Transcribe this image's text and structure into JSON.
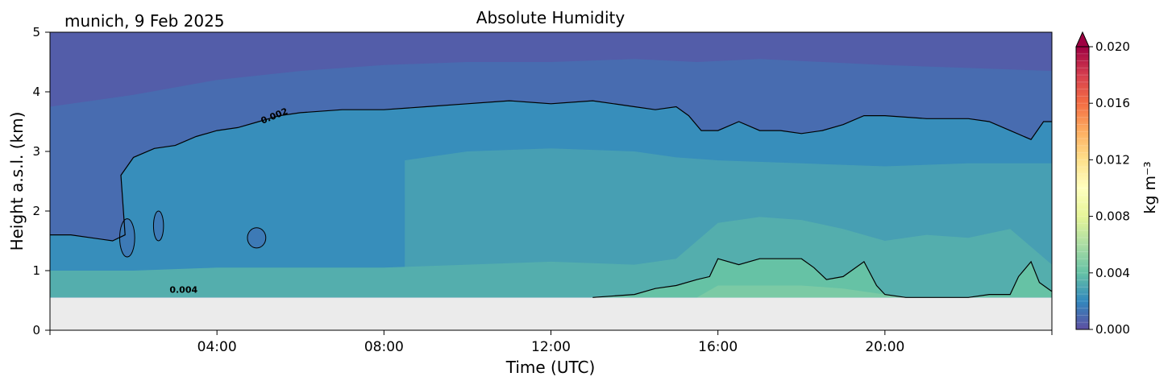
{
  "location_date": "munich, 9 Feb 2025",
  "chart_data": {
    "type": "heatmap",
    "title": "Absolute Humidity",
    "xlabel": "Time (UTC)",
    "ylabel": "Height a.s.l. (km)",
    "xlim": [
      0,
      24
    ],
    "ylim": [
      0,
      5
    ],
    "x_ticks": [
      4,
      8,
      12,
      16,
      20
    ],
    "x_tick_labels": [
      "04:00",
      "08:00",
      "12:00",
      "16:00",
      "20:00"
    ],
    "y_ticks": [
      0,
      1,
      2,
      3,
      4,
      5
    ],
    "y_tick_labels": [
      "0",
      "1",
      "2",
      "3",
      "4",
      "5"
    ],
    "data_bottom_km": 0.55,
    "grid": false,
    "colorbar": {
      "label": "kg m⁻³",
      "range": [
        0.0,
        0.02
      ],
      "extend": "max",
      "colormap": "Spectral_r",
      "ticks": [
        0.0,
        0.004,
        0.008,
        0.012,
        0.016,
        0.02
      ],
      "tick_labels": [
        "0.000",
        "0.004",
        "0.008",
        "0.012",
        "0.016",
        "0.020"
      ]
    },
    "contours": [
      {
        "level": 0.002,
        "label": "0.002",
        "times": [
          0.0,
          0.5,
          1.0,
          1.5,
          1.8,
          1.7,
          2.0,
          2.5,
          3.0,
          3.5,
          4.0,
          4.5,
          5.0,
          5.5,
          6.0,
          7.0,
          8.0,
          9.0,
          10.0,
          11.0,
          12.0,
          13.0,
          14.0,
          14.5,
          15.0,
          15.3,
          15.6,
          16.0,
          16.5,
          17.0,
          17.5,
          18.0,
          18.5,
          19.0,
          19.5,
          20.0,
          21.0,
          22.0,
          22.5,
          23.0,
          23.5,
          23.8,
          24.0
        ],
        "heights": [
          1.6,
          1.6,
          1.55,
          1.5,
          1.6,
          2.6,
          2.9,
          3.05,
          3.1,
          3.25,
          3.35,
          3.4,
          3.5,
          3.6,
          3.65,
          3.7,
          3.7,
          3.75,
          3.8,
          3.85,
          3.8,
          3.85,
          3.75,
          3.7,
          3.75,
          3.6,
          3.35,
          3.35,
          3.5,
          3.35,
          3.35,
          3.3,
          3.35,
          3.45,
          3.6,
          3.6,
          3.55,
          3.55,
          3.5,
          3.35,
          3.2,
          3.5,
          3.5
        ]
      },
      {
        "level": 0.004,
        "label": "0.004",
        "times": [
          13.0,
          14.0,
          14.5,
          15.0,
          15.5,
          15.8,
          16.0,
          16.5,
          17.0,
          17.5,
          18.0,
          18.3,
          18.6,
          19.0,
          19.5,
          19.8,
          20.0,
          20.5,
          21.0,
          21.5,
          22.0,
          22.5,
          23.0,
          23.2,
          23.5,
          23.7,
          24.0
        ],
        "heights": [
          0.55,
          0.6,
          0.7,
          0.75,
          0.85,
          0.9,
          1.2,
          1.1,
          1.2,
          1.2,
          1.2,
          1.05,
          0.85,
          0.9,
          1.15,
          0.75,
          0.6,
          0.55,
          0.55,
          0.55,
          0.55,
          0.6,
          0.6,
          0.9,
          1.15,
          0.8,
          0.65
        ]
      }
    ],
    "field_regions": [
      {
        "value": 0.0005,
        "top_times": [
          0,
          24
        ],
        "top_heights": [
          5.0,
          5.0
        ]
      },
      {
        "value": 0.001,
        "top_times": [
          0,
          2,
          4,
          6,
          8,
          10,
          12,
          14,
          15.5,
          17,
          20,
          22,
          24
        ],
        "top_heights": [
          3.75,
          3.95,
          4.2,
          4.35,
          4.45,
          4.5,
          4.5,
          4.55,
          4.5,
          4.55,
          4.45,
          4.4,
          4.35
        ]
      },
      {
        "value": 0.0022,
        "top_times": [
          0,
          0.5,
          1.0,
          1.5,
          1.8,
          1.7,
          2.0,
          2.5,
          3.0,
          3.5,
          4.0,
          4.5,
          5.0,
          5.5,
          6.0,
          7.0,
          8.0,
          9.0,
          10.0,
          11.0,
          12.0,
          13.0,
          14.0,
          14.5,
          15.0,
          15.3,
          15.6,
          16.0,
          16.5,
          17.0,
          17.5,
          18.0,
          18.5,
          19.0,
          19.5,
          20.0,
          21.0,
          22.0,
          22.5,
          23.0,
          23.5,
          23.8,
          24.0
        ],
        "top_heights": [
          1.6,
          1.6,
          1.55,
          1.5,
          1.6,
          2.6,
          2.9,
          3.05,
          3.1,
          3.25,
          3.35,
          3.4,
          3.5,
          3.6,
          3.65,
          3.7,
          3.7,
          3.75,
          3.8,
          3.85,
          3.8,
          3.85,
          3.75,
          3.7,
          3.75,
          3.6,
          3.35,
          3.35,
          3.5,
          3.35,
          3.35,
          3.3,
          3.35,
          3.45,
          3.6,
          3.6,
          3.55,
          3.55,
          3.5,
          3.35,
          3.2,
          3.5,
          3.5
        ]
      },
      {
        "value": 0.0028,
        "top_times": [
          8.5,
          10,
          12,
          14,
          15,
          16,
          18,
          20,
          22,
          24
        ],
        "top_heights": [
          2.85,
          3.0,
          3.05,
          3.0,
          2.9,
          2.85,
          2.8,
          2.75,
          2.8,
          2.8
        ]
      },
      {
        "value": 0.0033,
        "top_times": [
          0,
          2,
          4,
          6,
          8,
          10,
          12,
          14,
          15,
          16,
          17,
          18,
          19,
          20,
          21,
          22,
          23,
          24
        ],
        "top_heights": [
          1.0,
          1.0,
          1.05,
          1.05,
          1.05,
          1.1,
          1.15,
          1.1,
          1.2,
          1.8,
          1.9,
          1.85,
          1.7,
          1.5,
          1.6,
          1.55,
          1.7,
          1.1
        ]
      },
      {
        "value": 0.004,
        "top_times": [
          13.0,
          14.0,
          14.5,
          15.0,
          15.5,
          15.8,
          16.0,
          16.5,
          17.0,
          17.5,
          18.0,
          18.3,
          18.6,
          19.0,
          19.5,
          19.8,
          20.0,
          20.5,
          21.0,
          21.5,
          22.0,
          22.5,
          23.0,
          23.2,
          23.5,
          23.7,
          24.0
        ],
        "top_heights": [
          0.55,
          0.6,
          0.7,
          0.75,
          0.85,
          0.9,
          1.2,
          1.1,
          1.2,
          1.2,
          1.2,
          1.05,
          0.85,
          0.9,
          1.15,
          0.75,
          0.6,
          0.55,
          0.55,
          0.55,
          0.55,
          0.6,
          0.6,
          0.9,
          1.15,
          0.8,
          0.65
        ]
      },
      {
        "value": 0.0046,
        "top_times": [
          15.5,
          16,
          17,
          18,
          19,
          20,
          20.5
        ],
        "top_heights": [
          0.55,
          0.75,
          0.75,
          0.75,
          0.7,
          0.6,
          0.55
        ]
      }
    ]
  }
}
